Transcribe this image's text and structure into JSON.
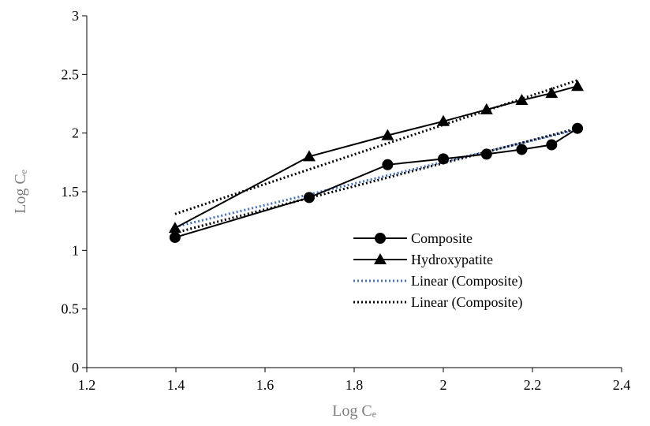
{
  "chart_data": {
    "type": "line",
    "title": "",
    "xlabel": "Log Cₑ",
    "ylabel": "Log Cₑ",
    "xlim": [
      1.2,
      2.4
    ],
    "ylim": [
      0,
      3
    ],
    "x_ticks": [
      "1.2",
      "1.4",
      "1.6",
      "1.8",
      "2",
      "2.2",
      "2.4"
    ],
    "y_ticks": [
      "0",
      "0.5",
      "1",
      "1.5",
      "2",
      "2.5",
      "3"
    ],
    "grid": false,
    "legend_position": "right",
    "series": [
      {
        "name": "Composite",
        "marker": "circle",
        "color": "#000000",
        "x": [
          1.398,
          1.699,
          1.875,
          2.0,
          2.097,
          2.176,
          2.243,
          2.301
        ],
        "y": [
          1.11,
          1.45,
          1.73,
          1.78,
          1.82,
          1.86,
          1.9,
          2.04
        ]
      },
      {
        "name": "Hydroxypatite",
        "marker": "triangle",
        "color": "#000000",
        "x": [
          1.398,
          1.699,
          1.875,
          2.0,
          2.097,
          2.176,
          2.243,
          2.301
        ],
        "y": [
          1.19,
          1.8,
          1.98,
          2.1,
          2.2,
          2.28,
          2.34,
          2.4
        ]
      }
    ],
    "trendlines": [
      {
        "name": "Linear (Composite)",
        "color": "#4472c4",
        "x": [
          1.398,
          2.301
        ],
        "y": [
          1.2,
          2.03
        ]
      },
      {
        "name": "Linear (Composite)",
        "color": "#000000",
        "x": [
          1.398,
          2.301
        ],
        "y": [
          1.31,
          2.45
        ]
      }
    ],
    "extra_trendlines": [
      {
        "color": "#000000",
        "x": [
          1.398,
          2.301
        ],
        "y": [
          1.15,
          2.04
        ]
      }
    ]
  }
}
